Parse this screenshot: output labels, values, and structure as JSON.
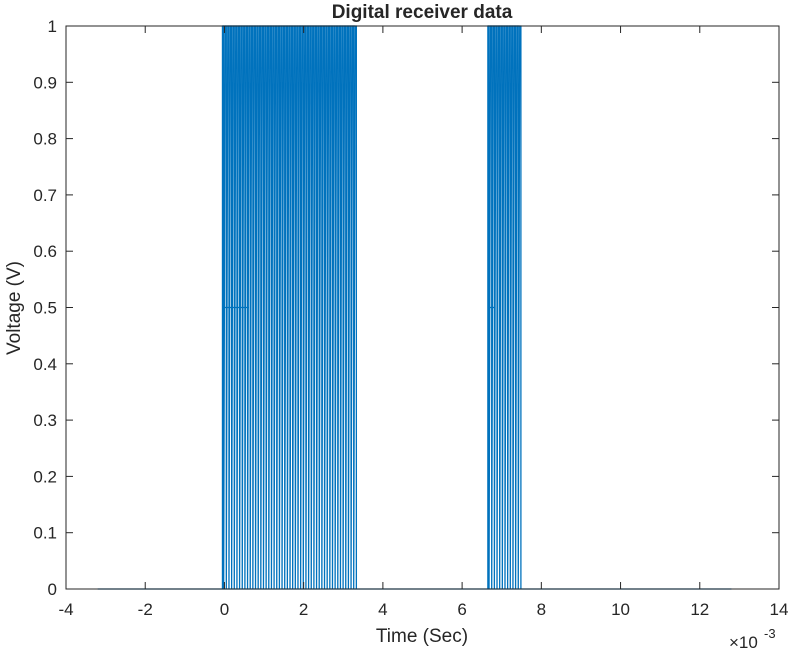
{
  "chart_data": {
    "type": "line",
    "title": "Digital receiver data",
    "xlabel": "Time (Sec)",
    "ylabel": "Voltage (V)",
    "x_exponent_base": "×10",
    "x_exponent_power": "-3",
    "xlim": [
      -4,
      14
    ],
    "ylim": [
      0,
      1
    ],
    "xticks": [
      -4,
      -2,
      0,
      2,
      4,
      6,
      8,
      10,
      12,
      14
    ],
    "xtick_labels": [
      "-4",
      "-2",
      "0",
      "2",
      "4",
      "6",
      "8",
      "10",
      "12",
      "14"
    ],
    "yticks": [
      0,
      0.1,
      0.2,
      0.3,
      0.4,
      0.5,
      0.6,
      0.7,
      0.8,
      0.9,
      1
    ],
    "ytick_labels": [
      "0",
      "0.1",
      "0.2",
      "0.3",
      "0.4",
      "0.5",
      "0.6",
      "0.7",
      "0.8",
      "0.9",
      "1"
    ],
    "grid": false,
    "series": [
      {
        "color": "#0072BD",
        "baseline_range": [
          -3.2,
          12.8
        ],
        "segments": [
          {
            "start": -0.05,
            "end": 3.3,
            "pulse_period": 0.067,
            "min": 0,
            "mid": 0.5,
            "max": 1
          },
          {
            "start": 6.65,
            "end": 7.45,
            "pulse_period": 0.067,
            "min": 0,
            "mid": 0.5,
            "max": 1
          }
        ]
      }
    ]
  }
}
